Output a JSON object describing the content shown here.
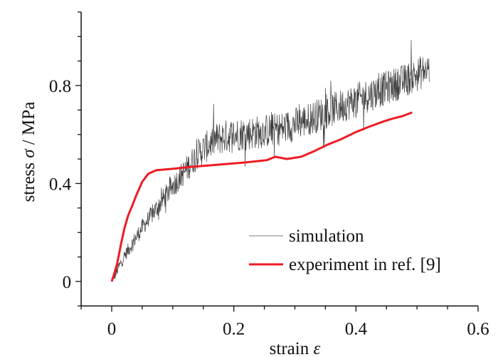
{
  "chart_data": {
    "type": "line",
    "title": "",
    "xlabel": "strain",
    "xlabel_symbol": "ε",
    "ylabel": "stress",
    "ylabel_symbol": "σ",
    "ylabel_unit": "/ MPa",
    "xlim": [
      -0.05,
      0.6
    ],
    "ylim": [
      -0.1,
      1.1
    ],
    "xticks": [
      0,
      0.2,
      0.4,
      0.6
    ],
    "xtick_labels": [
      "0",
      "0.2",
      "0.4",
      "0.6"
    ],
    "xminor_step": 0.05,
    "yticks": [
      0,
      0.4,
      0.8
    ],
    "ytick_labels": [
      "0",
      "0.4",
      "0.8"
    ],
    "yminor_step": 0.1,
    "grid": false,
    "legend_position": "bottom-right",
    "series": [
      {
        "name": "simulation",
        "color": "#000000",
        "style": "noisy",
        "noise_amplitude": 0.07,
        "x_end": 0.52,
        "x": [
          0,
          0.02,
          0.05,
          0.08,
          0.1,
          0.12,
          0.14,
          0.17,
          0.2,
          0.24,
          0.28,
          0.32,
          0.36,
          0.4,
          0.44,
          0.48,
          0.52
        ],
        "y": [
          0,
          0.1,
          0.22,
          0.32,
          0.39,
          0.45,
          0.52,
          0.58,
          0.6,
          0.61,
          0.625,
          0.66,
          0.7,
          0.74,
          0.78,
          0.82,
          0.87
        ]
      },
      {
        "name": "experiment in ref. [9]",
        "color": "#ee1c24",
        "style": "solid",
        "x": [
          0,
          0.004,
          0.009,
          0.015,
          0.021,
          0.027,
          0.033,
          0.04,
          0.05,
          0.06,
          0.073,
          0.1,
          0.13,
          0.16,
          0.19,
          0.22,
          0.254,
          0.268,
          0.287,
          0.31,
          0.33,
          0.353,
          0.375,
          0.4,
          0.42,
          0.446,
          0.46,
          0.476,
          0.492
        ],
        "y": [
          0,
          0.03,
          0.073,
          0.15,
          0.218,
          0.27,
          0.305,
          0.35,
          0.407,
          0.44,
          0.454,
          0.46,
          0.468,
          0.474,
          0.48,
          0.486,
          0.495,
          0.509,
          0.5,
          0.509,
          0.53,
          0.558,
          0.58,
          0.61,
          0.63,
          0.654,
          0.665,
          0.675,
          0.69
        ]
      }
    ]
  }
}
